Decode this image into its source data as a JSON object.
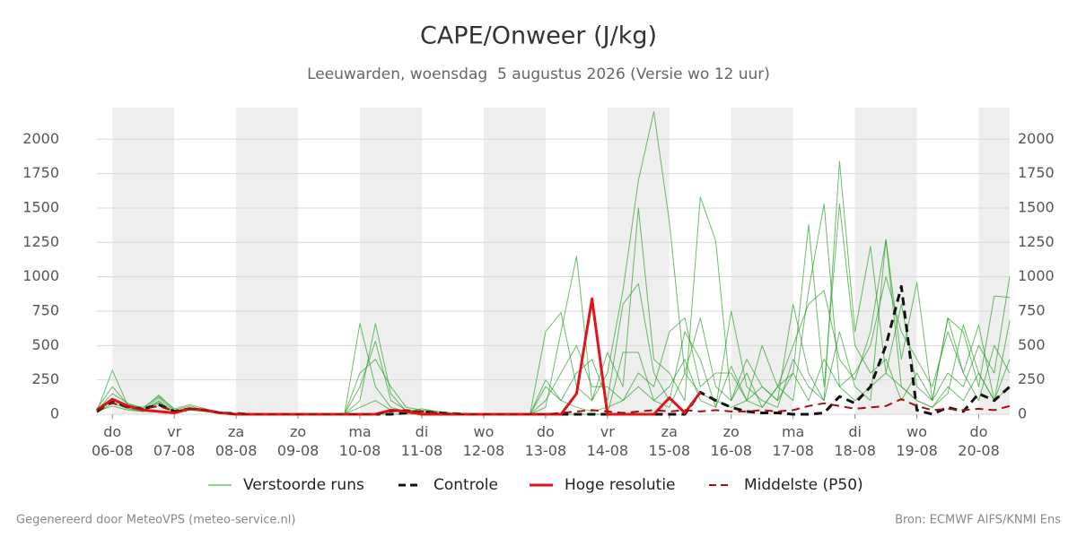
{
  "chart_data": {
    "type": "line",
    "title": "CAPE/Onweer (J/kg)",
    "subtitle": "Leeuwarden, woensdag  5 augustus 2026 (Versie wo 12 uur)",
    "footer_left": "Gegenereerd door MeteoVPS (meteo-service.nl)",
    "footer_right": "Bron: ECMWF AIFS/KNMI Ens",
    "xlim": [
      -0.25,
      14.5
    ],
    "xticks": [
      {
        "value": 0,
        "label": "do\n06-08"
      },
      {
        "value": 1,
        "label": "vr\n07-08"
      },
      {
        "value": 2,
        "label": "za\n08-08"
      },
      {
        "value": 3,
        "label": "zo\n09-08"
      },
      {
        "value": 4,
        "label": "ma\n10-08"
      },
      {
        "value": 5,
        "label": "di\n11-08"
      },
      {
        "value": 6,
        "label": "wo\n12-08"
      },
      {
        "value": 7,
        "label": "do\n13-08"
      },
      {
        "value": 8,
        "label": "vr\n14-08"
      },
      {
        "value": 9,
        "label": "za\n15-08"
      },
      {
        "value": 10,
        "label": "zo\n16-08"
      },
      {
        "value": 11,
        "label": "ma\n17-08"
      },
      {
        "value": 12,
        "label": "di\n18-08"
      },
      {
        "value": 13,
        "label": "wo\n19-08"
      },
      {
        "value": 14,
        "label": "do\n20-08"
      }
    ],
    "ylim": [
      0,
      2230
    ],
    "yticks": [
      0,
      250,
      500,
      750,
      1000,
      1250,
      1500,
      1750,
      2000
    ],
    "grid": true,
    "shaded_alternate_days": true,
    "x": [
      -0.25,
      0,
      0.25,
      0.5,
      0.75,
      1,
      1.25,
      1.5,
      1.75,
      2,
      2.25,
      2.5,
      2.75,
      3,
      3.25,
      3.5,
      3.75,
      4,
      4.25,
      4.5,
      4.75,
      5,
      5.25,
      5.5,
      5.75,
      6,
      6.25,
      6.5,
      6.75,
      7,
      7.25,
      7.5,
      7.75,
      8,
      8.25,
      8.5,
      8.75,
      9,
      9.25,
      9.5,
      9.75,
      10,
      10.25,
      10.5,
      10.75,
      11,
      11.25,
      11.5,
      11.75,
      12,
      12.25,
      12.5,
      12.75,
      13,
      13.25,
      13.5,
      13.75,
      14,
      14.25,
      14.5
    ],
    "ensemble": {
      "name": "Verstoorde runs",
      "color": "#2ca02c",
      "runs": [
        [
          20,
          320,
          60,
          30,
          120,
          20,
          50,
          20,
          5,
          0,
          0,
          0,
          0,
          0,
          0,
          0,
          0,
          660,
          200,
          50,
          20,
          40,
          20,
          10,
          0,
          0,
          0,
          0,
          0,
          50,
          600,
          1150,
          100,
          300,
          900,
          1700,
          2200,
          1400,
          300,
          700,
          200,
          100,
          400,
          200,
          100,
          800,
          300,
          100,
          600,
          200,
          100,
          1270,
          400,
          960,
          100,
          300,
          200,
          500,
          300,
          1000
        ],
        [
          30,
          150,
          80,
          40,
          140,
          30,
          60,
          30,
          10,
          0,
          0,
          0,
          0,
          0,
          0,
          0,
          0,
          200,
          530,
          100,
          30,
          20,
          10,
          0,
          0,
          0,
          0,
          0,
          0,
          600,
          740,
          200,
          100,
          450,
          200,
          1500,
          400,
          300,
          100,
          1580,
          1260,
          100,
          300,
          50,
          200,
          300,
          1380,
          200,
          1530,
          500,
          300,
          400,
          100,
          300,
          100,
          700,
          600,
          200,
          860,
          850
        ],
        [
          10,
          80,
          40,
          20,
          100,
          10,
          30,
          20,
          5,
          0,
          0,
          0,
          0,
          0,
          0,
          0,
          0,
          100,
          660,
          150,
          20,
          10,
          0,
          0,
          0,
          0,
          0,
          0,
          0,
          200,
          100,
          300,
          400,
          100,
          800,
          950,
          300,
          100,
          600,
          400,
          50,
          750,
          200,
          100,
          50,
          400,
          200,
          100,
          1840,
          600,
          1220,
          300,
          800,
          200,
          100,
          700,
          300,
          650,
          100,
          400
        ],
        [
          40,
          200,
          70,
          50,
          130,
          40,
          70,
          40,
          10,
          0,
          0,
          0,
          0,
          0,
          0,
          0,
          0,
          300,
          400,
          200,
          50,
          30,
          20,
          0,
          0,
          0,
          0,
          0,
          0,
          100,
          300,
          500,
          200,
          200,
          100,
          300,
          200,
          600,
          700,
          200,
          300,
          300,
          100,
          500,
          200,
          100,
          900,
          1530,
          200,
          300,
          500,
          1000,
          600,
          400,
          200,
          600,
          300,
          100,
          500,
          300
        ],
        [
          20,
          60,
          30,
          20,
          80,
          20,
          40,
          20,
          5,
          0,
          0,
          0,
          0,
          0,
          0,
          0,
          0,
          50,
          100,
          30,
          10,
          10,
          0,
          0,
          0,
          0,
          0,
          0,
          0,
          250,
          100,
          50,
          20,
          50,
          100,
          200,
          100,
          50,
          300,
          150,
          100,
          50,
          100,
          200,
          100,
          300,
          100,
          400,
          200,
          100,
          200,
          300,
          200,
          100,
          50,
          200,
          100,
          300,
          100,
          200
        ],
        [
          15,
          100,
          50,
          25,
          90,
          15,
          35,
          25,
          8,
          0,
          0,
          0,
          0,
          0,
          0,
          0,
          0,
          0,
          0,
          0,
          0,
          0,
          0,
          0,
          0,
          0,
          0,
          0,
          0,
          0,
          0,
          0,
          0,
          0,
          450,
          450,
          100,
          200,
          400,
          100,
          50,
          350,
          100,
          50,
          200,
          500,
          800,
          900,
          400,
          250,
          600,
          1270,
          200,
          100,
          50,
          150,
          650,
          300,
          100,
          680
        ]
      ]
    },
    "series": [
      {
        "name": "Controle",
        "color": "#111111",
        "dashed": true,
        "width": 3,
        "values": [
          20,
          100,
          50,
          40,
          70,
          20,
          40,
          30,
          10,
          5,
          0,
          0,
          0,
          0,
          0,
          0,
          0,
          0,
          0,
          0,
          10,
          20,
          10,
          5,
          0,
          0,
          0,
          0,
          0,
          0,
          0,
          0,
          0,
          0,
          0,
          0,
          0,
          0,
          0,
          160,
          100,
          50,
          20,
          10,
          10,
          0,
          0,
          10,
          130,
          80,
          200,
          500,
          930,
          30,
          0,
          50,
          20,
          150,
          100,
          200
        ]
      },
      {
        "name": "Hoge resolutie",
        "color": "#e0151b",
        "dashed": false,
        "width": 3,
        "values": [
          30,
          110,
          60,
          30,
          20,
          10,
          40,
          30,
          10,
          0,
          0,
          0,
          0,
          0,
          0,
          0,
          0,
          0,
          0,
          30,
          20,
          0,
          0,
          0,
          0,
          0,
          0,
          0,
          0,
          0,
          0,
          150,
          840,
          0,
          0,
          0,
          0,
          120,
          10,
          160,
          null,
          null,
          null,
          null,
          null,
          null,
          null,
          null,
          null,
          null,
          null,
          null,
          null,
          null,
          null,
          null,
          null,
          null,
          null,
          null
        ]
      },
      {
        "name": "Middelste (P50)",
        "color": "#a01010",
        "dashed": true,
        "width": 2,
        "values": [
          30,
          80,
          50,
          40,
          60,
          20,
          40,
          30,
          10,
          0,
          0,
          0,
          0,
          0,
          0,
          0,
          0,
          0,
          0,
          20,
          30,
          20,
          10,
          0,
          0,
          0,
          0,
          0,
          0,
          0,
          10,
          20,
          30,
          20,
          10,
          20,
          30,
          20,
          30,
          20,
          30,
          20,
          20,
          30,
          20,
          30,
          60,
          80,
          60,
          40,
          50,
          60,
          110,
          60,
          30,
          40,
          30,
          40,
          30,
          60
        ]
      }
    ]
  }
}
